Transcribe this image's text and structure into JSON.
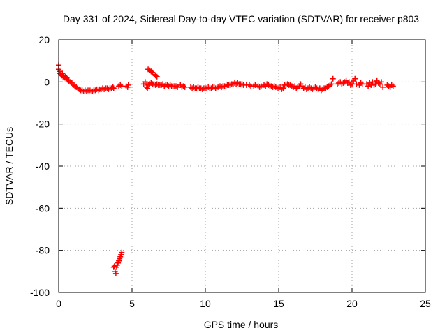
{
  "chart_data": {
    "type": "scatter",
    "title": "Day 331 of 2024, Sidereal Day-to-day VTEC variation (SDTVAR) for receiver p803",
    "xlabel": "GPS time / hours",
    "ylabel": "SDTVAR / TECUs",
    "xlim": [
      0,
      25
    ],
    "ylim": [
      -100,
      20
    ],
    "xticks": [
      "0",
      "5",
      "10",
      "15",
      "20",
      "25"
    ],
    "yticks": [
      "20",
      "0",
      "-20",
      "-40",
      "-60",
      "-80",
      "-100"
    ],
    "grid": true,
    "marker": "plus",
    "color": "#ff0000",
    "series": [
      {
        "name": "SDTVAR",
        "points": [
          [
            0.0,
            8
          ],
          [
            0.0,
            6
          ],
          [
            0.05,
            5
          ],
          [
            0.1,
            4
          ],
          [
            0.15,
            3.5
          ],
          [
            0.2,
            3
          ],
          [
            0.25,
            4
          ],
          [
            0.3,
            2.5
          ],
          [
            0.35,
            3
          ],
          [
            0.4,
            2
          ],
          [
            0.45,
            2.5
          ],
          [
            0.5,
            1.5
          ],
          [
            0.55,
            2
          ],
          [
            0.6,
            1
          ],
          [
            0.7,
            0.5
          ],
          [
            0.8,
            0
          ],
          [
            0.9,
            -0.5
          ],
          [
            1.0,
            -1.5
          ],
          [
            1.1,
            -2
          ],
          [
            1.2,
            -2.5
          ],
          [
            1.3,
            -3
          ],
          [
            1.4,
            -3.5
          ],
          [
            1.5,
            -4
          ],
          [
            1.6,
            -4
          ],
          [
            1.7,
            -4.5
          ],
          [
            1.8,
            -4
          ],
          [
            1.9,
            -4.5
          ],
          [
            2.0,
            -4
          ],
          [
            2.1,
            -4
          ],
          [
            2.2,
            -4
          ],
          [
            2.3,
            -4.5
          ],
          [
            2.4,
            -4
          ],
          [
            2.5,
            -4
          ],
          [
            2.6,
            -3.5
          ],
          [
            2.7,
            -4
          ],
          [
            2.8,
            -3.5
          ],
          [
            2.9,
            -3.5
          ],
          [
            3.0,
            -3
          ],
          [
            3.1,
            -3.5
          ],
          [
            3.2,
            -3
          ],
          [
            3.3,
            -3
          ],
          [
            3.4,
            -3.5
          ],
          [
            3.5,
            -3
          ],
          [
            3.6,
            -3
          ],
          [
            3.7,
            -2.5
          ],
          [
            3.75,
            -3
          ],
          [
            4.1,
            -2
          ],
          [
            4.2,
            -1.5
          ],
          [
            4.3,
            -2
          ],
          [
            4.6,
            -2
          ],
          [
            4.7,
            -2.5
          ],
          [
            4.75,
            -1.5
          ],
          [
            3.75,
            -88
          ],
          [
            3.8,
            -87.5
          ],
          [
            3.85,
            -90
          ],
          [
            3.9,
            -91
          ],
          [
            3.95,
            -88
          ],
          [
            4.0,
            -87
          ],
          [
            4.05,
            -86
          ],
          [
            4.1,
            -85
          ],
          [
            4.15,
            -84
          ],
          [
            4.2,
            -83
          ],
          [
            4.25,
            -82
          ],
          [
            4.3,
            -81
          ],
          [
            6.0,
            -1
          ],
          [
            6.1,
            -1.5
          ],
          [
            6.2,
            -1
          ],
          [
            6.3,
            -0.5
          ],
          [
            6.4,
            -1
          ],
          [
            6.5,
            -1
          ],
          [
            6.6,
            -1.5
          ],
          [
            6.7,
            -1
          ],
          [
            6.8,
            -1.5
          ],
          [
            6.9,
            -1.5
          ],
          [
            7.0,
            -1.5
          ],
          [
            7.1,
            -1
          ],
          [
            7.2,
            -2
          ],
          [
            7.3,
            -1.5
          ],
          [
            7.4,
            -1.5
          ],
          [
            7.5,
            -2
          ],
          [
            7.6,
            -1.5
          ],
          [
            7.7,
            -2
          ],
          [
            7.8,
            -2
          ],
          [
            7.9,
            -2
          ],
          [
            8.0,
            -2
          ],
          [
            8.1,
            -2.5
          ],
          [
            8.3,
            -1.5
          ],
          [
            8.4,
            -2.5
          ],
          [
            8.5,
            -2
          ],
          [
            8.6,
            -2.5
          ],
          [
            5.8,
            -1
          ],
          [
            5.9,
            0
          ],
          [
            6.0,
            -2.5
          ],
          [
            6.05,
            -3
          ],
          [
            6.1,
            6
          ],
          [
            6.2,
            5.5
          ],
          [
            6.3,
            5
          ],
          [
            6.4,
            4.5
          ],
          [
            6.5,
            3.5
          ],
          [
            6.6,
            3
          ],
          [
            6.7,
            2.5
          ],
          [
            9.0,
            -2.5
          ],
          [
            9.1,
            -3
          ],
          [
            9.2,
            -2.5
          ],
          [
            9.3,
            -3
          ],
          [
            9.4,
            -3
          ],
          [
            9.5,
            -2.5
          ],
          [
            9.6,
            -3
          ],
          [
            9.7,
            -3
          ],
          [
            9.8,
            -3.5
          ],
          [
            9.9,
            -3
          ],
          [
            10.0,
            -3
          ],
          [
            10.1,
            -3
          ],
          [
            10.2,
            -2.5
          ],
          [
            10.3,
            -3
          ],
          [
            10.4,
            -3
          ],
          [
            10.5,
            -2.5
          ],
          [
            10.6,
            -2.5
          ],
          [
            10.7,
            -3
          ],
          [
            10.8,
            -2.5
          ],
          [
            10.9,
            -2.5
          ],
          [
            11.0,
            -2
          ],
          [
            11.1,
            -2.5
          ],
          [
            11.2,
            -2
          ],
          [
            11.3,
            -2
          ],
          [
            11.4,
            -2
          ],
          [
            11.5,
            -1.5
          ],
          [
            11.6,
            -1.5
          ],
          [
            11.7,
            -1.5
          ],
          [
            11.8,
            -1
          ],
          [
            11.9,
            -1
          ],
          [
            12.0,
            -0.5
          ],
          [
            12.1,
            -1
          ],
          [
            12.2,
            -0.5
          ],
          [
            12.3,
            -1
          ],
          [
            12.4,
            -1
          ],
          [
            12.5,
            -1
          ],
          [
            12.6,
            -1.5
          ],
          [
            12.8,
            -1.5
          ],
          [
            13.0,
            -1.5
          ],
          [
            13.1,
            -2
          ],
          [
            13.3,
            -2
          ],
          [
            13.4,
            -1.5
          ],
          [
            13.6,
            -2
          ],
          [
            13.7,
            -2.5
          ],
          [
            13.8,
            -2
          ],
          [
            14.0,
            -1.5
          ],
          [
            14.1,
            -2
          ],
          [
            14.2,
            -1
          ],
          [
            14.3,
            -1.5
          ],
          [
            14.4,
            -2
          ],
          [
            14.5,
            -2
          ],
          [
            14.6,
            -2.5
          ],
          [
            14.7,
            -2
          ],
          [
            14.8,
            -2.5
          ],
          [
            14.9,
            -3
          ],
          [
            15.0,
            -3
          ],
          [
            15.1,
            -2.5
          ],
          [
            15.2,
            -3.5
          ],
          [
            15.3,
            -3
          ],
          [
            15.4,
            -1.5
          ],
          [
            15.5,
            -1.5
          ],
          [
            15.6,
            -1
          ],
          [
            15.7,
            -1.5
          ],
          [
            15.8,
            -1.5
          ],
          [
            15.9,
            -2
          ],
          [
            16.0,
            -2.5
          ],
          [
            16.1,
            -2
          ],
          [
            16.2,
            -3
          ],
          [
            16.3,
            -2.5
          ],
          [
            16.4,
            -2
          ],
          [
            16.5,
            -1
          ],
          [
            16.6,
            -2
          ],
          [
            16.7,
            -3
          ],
          [
            16.8,
            -2.5
          ],
          [
            16.9,
            -3.5
          ],
          [
            17.0,
            -3
          ],
          [
            17.1,
            -2.5
          ],
          [
            17.2,
            -3
          ],
          [
            17.3,
            -3.5
          ],
          [
            17.4,
            -3
          ],
          [
            17.5,
            -2.5
          ],
          [
            17.6,
            -3
          ],
          [
            17.7,
            -3.5
          ],
          [
            17.8,
            -3
          ],
          [
            17.9,
            -4
          ],
          [
            18.0,
            -3.5
          ],
          [
            18.1,
            -3
          ],
          [
            18.2,
            -3
          ],
          [
            18.3,
            -2.5
          ],
          [
            18.4,
            -2
          ],
          [
            18.5,
            -1.5
          ],
          [
            18.6,
            -1
          ],
          [
            18.7,
            1.5
          ],
          [
            19.0,
            -1
          ],
          [
            19.1,
            -0.5
          ],
          [
            19.2,
            0
          ],
          [
            19.3,
            -1
          ],
          [
            19.4,
            -0.5
          ],
          [
            19.5,
            0
          ],
          [
            19.6,
            0.5
          ],
          [
            19.7,
            -0.5
          ],
          [
            19.8,
            0
          ],
          [
            19.9,
            -1.5
          ],
          [
            20.0,
            -1
          ],
          [
            20.1,
            0.5
          ],
          [
            20.2,
            1.5
          ],
          [
            20.3,
            -1
          ],
          [
            20.5,
            -1.5
          ],
          [
            20.6,
            -0.5
          ],
          [
            20.7,
            -1
          ],
          [
            21.0,
            -1
          ],
          [
            21.1,
            -2
          ],
          [
            21.2,
            -0.5
          ],
          [
            21.3,
            -1.5
          ],
          [
            21.4,
            0
          ],
          [
            21.5,
            -1.5
          ],
          [
            21.6,
            -1
          ],
          [
            21.7,
            0.5
          ],
          [
            21.8,
            -0.5
          ],
          [
            21.9,
            -1
          ],
          [
            22.0,
            0
          ],
          [
            22.1,
            -2.5
          ],
          [
            22.4,
            -1.5
          ],
          [
            22.5,
            -2
          ],
          [
            22.6,
            -2.5
          ],
          [
            22.7,
            -1.5
          ],
          [
            22.8,
            -2
          ]
        ]
      }
    ]
  }
}
